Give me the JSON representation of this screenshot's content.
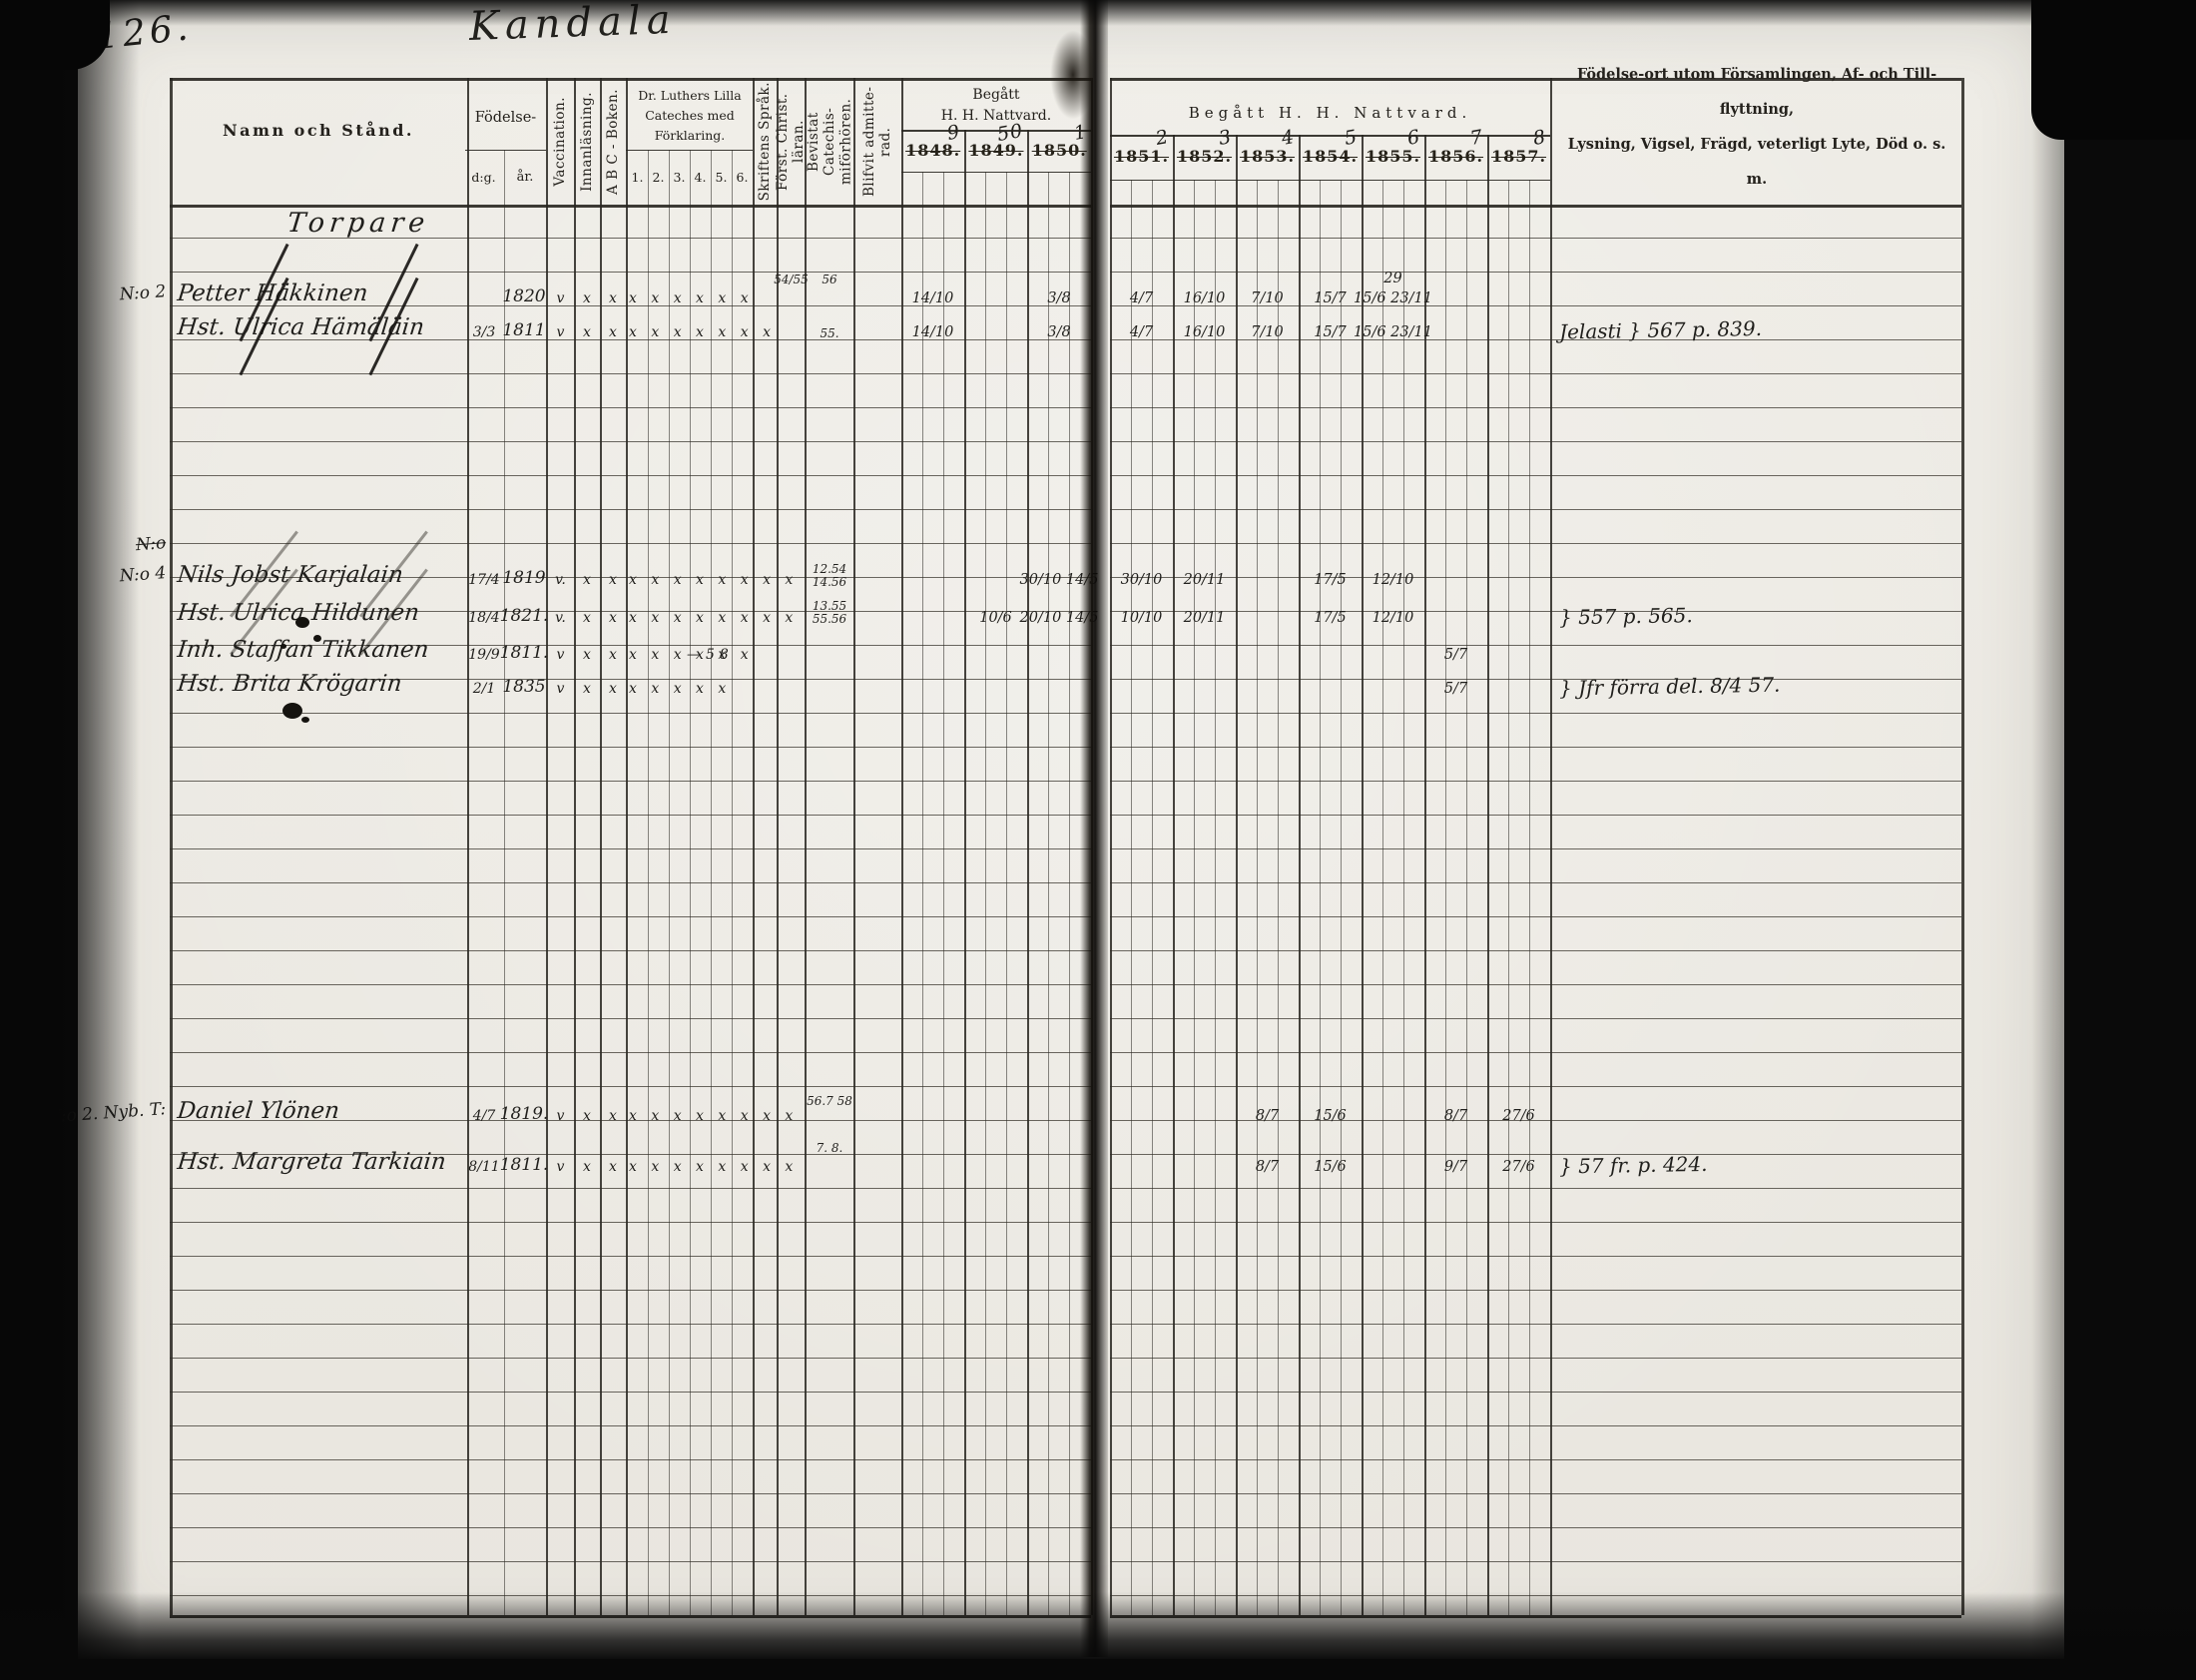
{
  "page": {
    "number": "126.",
    "title": "Kandala"
  },
  "header": {
    "namn": "Namn och Stånd.",
    "fodelse": "Födelse-",
    "dag": "d:g.",
    "ar": "år.",
    "vaccination": "Vaccination.",
    "innanlasning": "Innanläsning.",
    "abc": "A B C - Boken.",
    "cateches_line1": "Dr. Luthers Lilla",
    "cateches_line2": "Cateches med",
    "cateches_line3": "Förklaring.",
    "cateches_cols": [
      "1.",
      "2.",
      "3.",
      "4.",
      "5.",
      "6."
    ],
    "skriftens": "Skriftens Språk.",
    "forst": "Först. Christ. läran.",
    "bevistat": "Bevistat Catechis- miförhören.",
    "blifvit": "Blifvit admitte- rad.",
    "begatt_left_line1": "Begått",
    "begatt_left_line2": "H. H. Nattvard.",
    "begatt_right": "Begått  H. H.  Nattvard.",
    "years_left": [
      {
        "printed": "1848.",
        "hand": "9"
      },
      {
        "printed": "1849.",
        "hand": "50"
      },
      {
        "printed": "1850.",
        "hand": "1"
      }
    ],
    "years_right": [
      {
        "printed": "1851.",
        "hand": "2"
      },
      {
        "printed": "1852.",
        "hand": "3"
      },
      {
        "printed": "1853.",
        "hand": "4"
      },
      {
        "printed": "1854.",
        "hand": "5"
      },
      {
        "printed": "1855.",
        "hand": "6"
      },
      {
        "printed": "1856.",
        "hand": "7"
      },
      {
        "printed": "1857.",
        "hand": "8"
      }
    ],
    "notes_line1": "Födelse-ort utom Församlingen, Af- och Till-flyttning,",
    "notes_line2": "Lysning, Vigsel, Frägd, veterligt Lyte, Död o. s. m."
  },
  "entries": [
    {
      "row": 0.0,
      "kind": "section",
      "cells": {
        "name": "Torpare"
      }
    },
    {
      "row": 1.4,
      "kind": "scribble",
      "cells": {
        "forst": "54/55",
        "bevistat": "56",
        "y1856": "29"
      }
    },
    {
      "row": 2.0,
      "margin": "N:o 2",
      "struck": true,
      "cells": {
        "name": "Petter Häkkinen",
        "ar": "1820",
        "vacc": "v",
        "innan": "x",
        "abc": "x",
        "cat": "x x x x x x",
        "y1848": "14/10",
        "y1850": "3/8",
        "y1852": "4/7",
        "y1853": "16/10",
        "y1854": "7/10",
        "y1855": "15/7",
        "y1856": "15/6 23/11"
      }
    },
    {
      "row": 3.0,
      "struck": true,
      "cells": {
        "name": "Hst. Ulrica Hämäläin",
        "dag": "3/3",
        "ar": "1811",
        "vacc": "v",
        "innan": "x",
        "abc": "x",
        "cat": "x x x x x x x",
        "bevistat": "55.",
        "y1848": "14/10",
        "y1850": "3/8",
        "y1852": "4/7",
        "y1853": "16/10",
        "y1854": "7/10",
        "y1855": "15/7",
        "y1856": "15/6 23/11",
        "notes": "Jelasti } 567 p. 839."
      }
    },
    {
      "row": 9.4,
      "kind": "scribble",
      "margin": "N:o",
      "struck_margin": true,
      "cells": {}
    },
    {
      "row": 10.3,
      "margin": "N:o 4",
      "struck_light": true,
      "cells": {
        "name": "Nils Jobst Karjalain",
        "dag": "17/4",
        "ar": "1819",
        "vacc": "v.",
        "innan": "x",
        "abc": "x",
        "cat": "x x x x x x x x",
        "bevistat": "12.54 14.56",
        "y1850": "30/10 14/5",
        "y1852": "30/10",
        "y1853": "20/11",
        "y1855": "17/5",
        "y1856": "12/10"
      }
    },
    {
      "row": 11.4,
      "struck_light": true,
      "cells": {
        "name": "Hst. Ulrica Hildunen",
        "dag": "18/4",
        "ar": "1821.",
        "vacc": "v.",
        "innan": "x",
        "abc": "x",
        "cat": "x x x x x x x x",
        "bevistat": "13.55 55.56",
        "y1849": "10/6",
        "y1850": "20/10 14/5",
        "y1852": "10/10",
        "y1853": "20/11",
        "y1855": "17/5",
        "y1856": "12/10",
        "notes": "} 557 p. 565."
      }
    },
    {
      "row": 12.5,
      "cells": {
        "name": "Inh. Staffan Tikkanen",
        "dag": "19/9",
        "ar": "1811.",
        "vacc": "v",
        "innan": "x",
        "abc": "x",
        "cat": "x x x x x x",
        "cat_note": "—58",
        "y1857": "5/7"
      }
    },
    {
      "row": 13.5,
      "cells": {
        "name": "Hst. Brita Krögarin",
        "dag": "2/1",
        "ar": "1835",
        "vacc": "v",
        "innan": "x",
        "abc": "x",
        "cat": "x x x x x",
        "y1857": "5/7",
        "notes": "} Jfr förra del. 8/4 57."
      }
    },
    {
      "row": 25.6,
      "kind": "scribble",
      "cells": {
        "bevistat": "56.7 58"
      }
    },
    {
      "row": 26.1,
      "margin": "N:o 2. Nyb. T:",
      "cells": {
        "name": "Daniel Ylönen",
        "dag": "4/7",
        "ar": "1819.",
        "vacc": "v",
        "innan": "x",
        "abc": "x",
        "cat": "x x x x x x x x",
        "y1854": "8/7",
        "y1855": "15/6",
        "y1857": "8/7",
        "y1858": "27/6"
      }
    },
    {
      "row": 27.0,
      "kind": "scribble",
      "cells": {
        "bevistat": "7. 8."
      }
    },
    {
      "row": 27.6,
      "cells": {
        "name": "Hst. Margreta Tarkiain",
        "dag": "8/11",
        "ar": "1811.",
        "vacc": "v",
        "innan": "x",
        "abc": "x",
        "cat": "x x x x x x x x",
        "y1854": "8/7",
        "y1855": "15/6",
        "y1857": "9/7",
        "y1858": "27/6",
        "notes": "} 57 fr. p. 424."
      }
    }
  ]
}
